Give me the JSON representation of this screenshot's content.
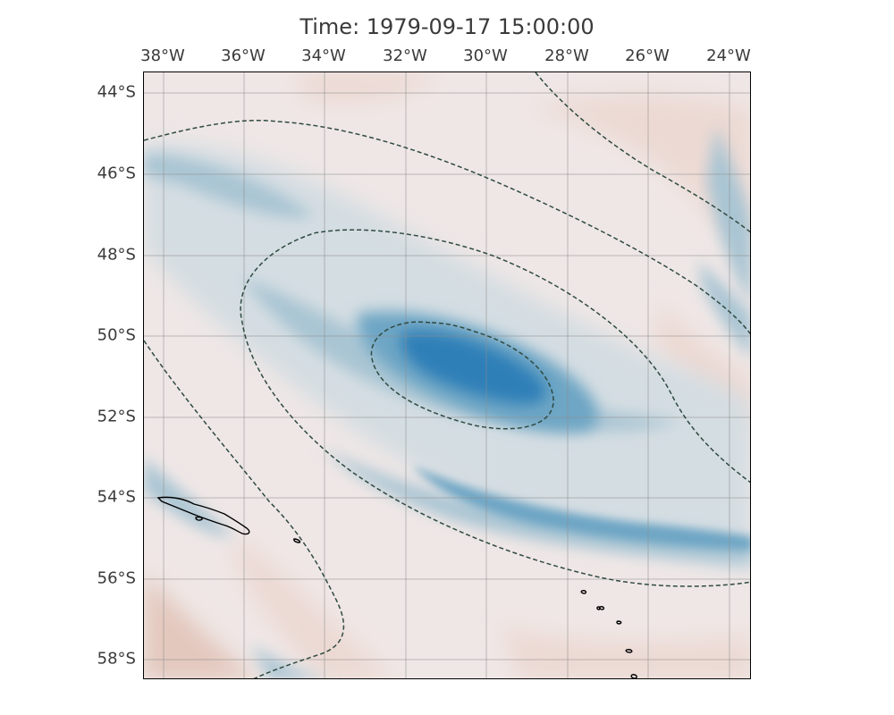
{
  "title": "Time: 1979-09-17 15:00:00",
  "lon_ticks": [
    "38°W",
    "36°W",
    "34°W",
    "32°W",
    "30°W",
    "28°W",
    "26°W",
    "24°W"
  ],
  "lat_ticks": [
    "44°S",
    "46°S",
    "48°S",
    "50°S",
    "52°S",
    "54°S",
    "56°S",
    "58°S"
  ],
  "extent": {
    "lon_min": -38.5,
    "lon_max": -23.5,
    "lat_min": -58.5,
    "lat_max": -43.5
  },
  "colors": {
    "background": "#efe7e6",
    "negative_strong": "#2f7fb8",
    "negative_mid": "#6ea6c5",
    "negative_weak": "#a9c5d3",
    "negative_faint": "#d4dde2",
    "positive_weak": "#ecd9d3",
    "positive_mid": "#e3c8bd",
    "contour": "#2f4a40",
    "coastline": "#000000"
  }
}
